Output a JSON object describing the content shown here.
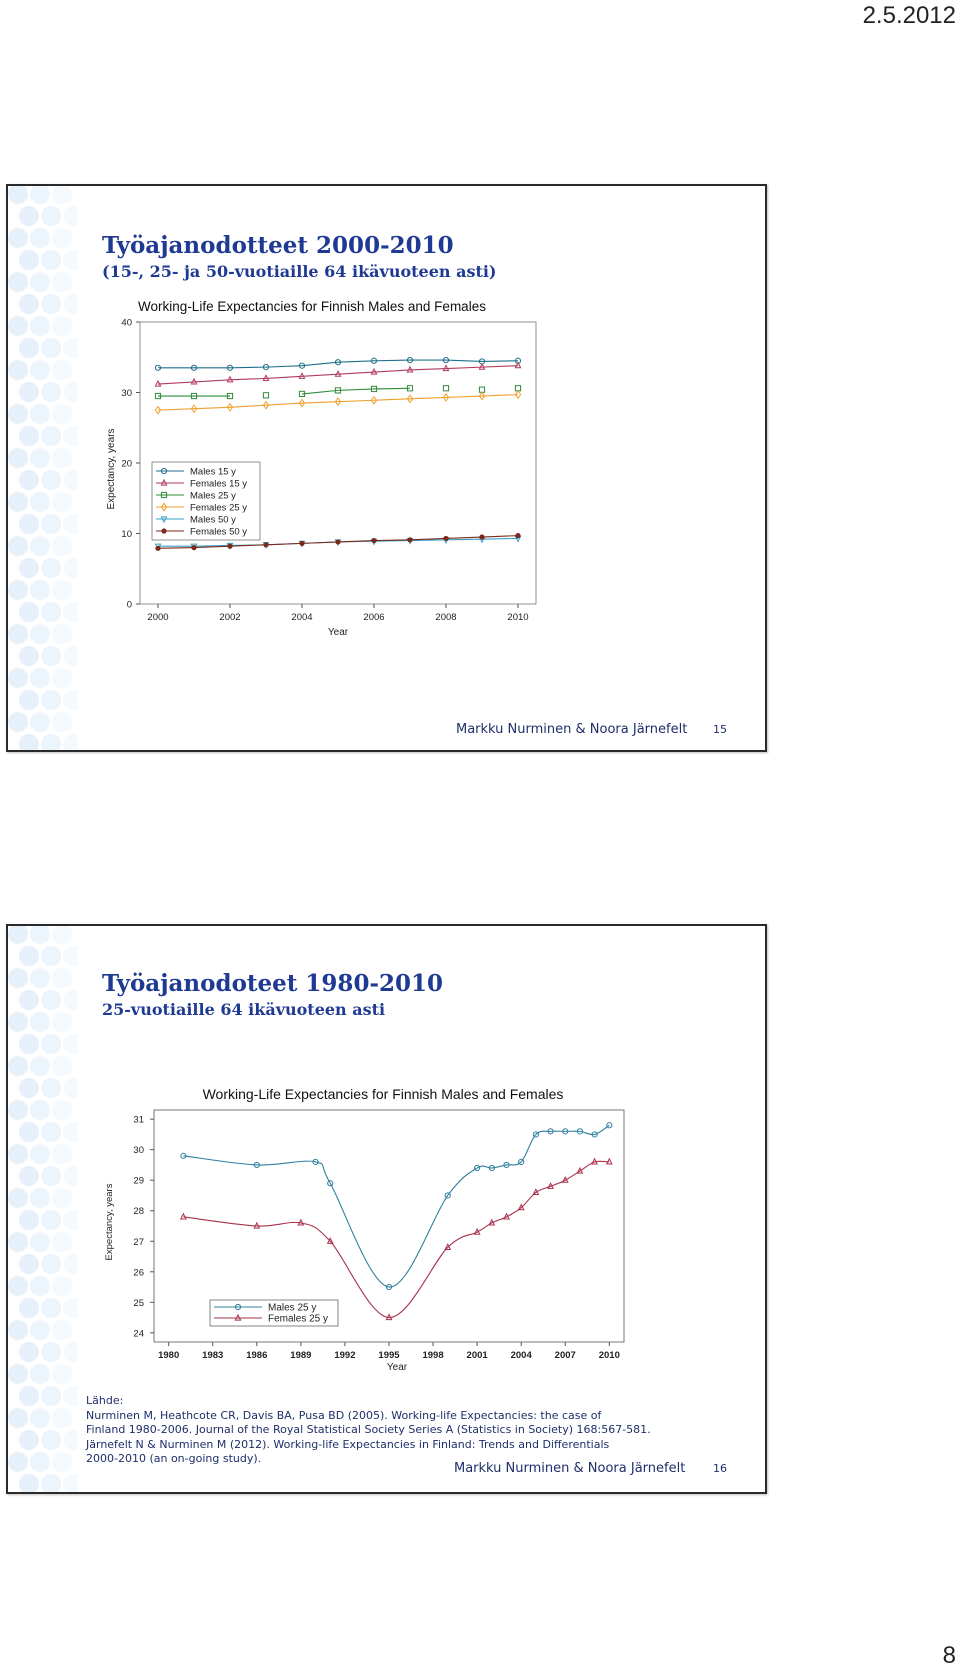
{
  "page": {
    "date": "2.5.2012",
    "number": "8"
  },
  "slides": [
    {
      "title": "Työajanodotteet 2000-2010",
      "subtitle": "(15-, 25- ja 50-vuotiaille 64 ikävuoteen asti)",
      "author": "Markku Nurminen & Noora Järnefelt",
      "slide_number": "15"
    },
    {
      "title": "Työajanodoteet 1980-2010",
      "subtitle": "25-vuotiaille 64 ikävuoteen asti",
      "author": "Markku Nurminen & Noora Järnefelt",
      "slide_number": "16",
      "sources": [
        "Lähde:",
        "Nurminen M, Heathcote CR, Davis BA, Pusa BD (2005). Working-life Expectancies: the case of",
        "Finland 1980-2006. Journal of the Royal Statistical Society Series A (Statistics in Society) 168:567-581.",
        "Järnefelt N & Nurminen M (2012). Working-life Expectancies in Finland: Trends and Differentials",
        "2000-2010 (an on-going study)."
      ]
    }
  ],
  "chart_data": [
    {
      "type": "line",
      "title": "Working-Life Expectancies for Finnish Males and Females",
      "xlabel": "Year",
      "ylabel": "Expectancy, years",
      "xlim": [
        1999.5,
        2010.5
      ],
      "ylim": [
        0,
        40
      ],
      "xticks": [
        2000,
        2002,
        2004,
        2006,
        2008,
        2010
      ],
      "yticks": [
        0,
        10,
        20,
        30,
        40
      ],
      "legend_position": "left-middle",
      "x": [
        2000,
        2001,
        2002,
        2003,
        2004,
        2005,
        2006,
        2007,
        2008,
        2009,
        2010
      ],
      "series": [
        {
          "name": "Males 15 y",
          "marker": "circle",
          "color": "#1f6f8b",
          "values": [
            33.5,
            33.5,
            33.5,
            33.6,
            33.8,
            34.3,
            34.5,
            34.6,
            34.6,
            34.4,
            34.5
          ]
        },
        {
          "name": "Females 15 y",
          "marker": "triangle",
          "color": "#b03a5b",
          "values": [
            31.2,
            31.5,
            31.8,
            32.0,
            32.3,
            32.6,
            32.9,
            33.2,
            33.4,
            33.6,
            33.8
          ]
        },
        {
          "name": "Males 25 y",
          "marker": "square",
          "color": "#2e8b3a",
          "values": [
            29.5,
            29.5,
            29.5,
            29.6,
            29.8,
            30.3,
            30.5,
            30.6,
            30.6,
            30.4,
            30.6
          ]
        },
        {
          "name": "Females 25 y",
          "marker": "diamond",
          "color": "#f0a030",
          "values": [
            27.5,
            27.7,
            27.9,
            28.2,
            28.5,
            28.7,
            28.9,
            29.1,
            29.3,
            29.5,
            29.7
          ]
        },
        {
          "name": "Males 50 y",
          "marker": "triangle-down",
          "color": "#3aa0c8",
          "values": [
            8.2,
            8.2,
            8.3,
            8.4,
            8.6,
            8.8,
            8.9,
            9.0,
            9.1,
            9.2,
            9.3
          ]
        },
        {
          "name": "Females 50 y",
          "marker": "dot",
          "color": "#7a2a1a",
          "values": [
            7.9,
            8.0,
            8.2,
            8.4,
            8.6,
            8.8,
            9.0,
            9.1,
            9.3,
            9.5,
            9.7
          ]
        }
      ]
    },
    {
      "type": "line",
      "title": "Working-Life Expectancies for Finnish Males and Females",
      "xlabel": "Year",
      "ylabel": "Expectancy, years",
      "xlim": [
        1979,
        2011
      ],
      "ylim": [
        23.7,
        31.3
      ],
      "xticks": [
        1980,
        1983,
        1986,
        1989,
        1992,
        1995,
        1998,
        2001,
        2004,
        2007,
        2010
      ],
      "yticks": [
        24,
        25,
        26,
        27,
        28,
        29,
        30,
        31
      ],
      "legend_position": "bottom-left",
      "series": [
        {
          "name": "Males 25 y",
          "marker": "circle",
          "color": "#2f7f9f",
          "x": [
            1981,
            1986,
            1990,
            1991,
            1995,
            1999,
            2001,
            2002,
            2003,
            2004,
            2005,
            2006,
            2007,
            2008,
            2009,
            2010
          ],
          "values": [
            29.8,
            29.5,
            29.6,
            28.9,
            25.5,
            28.5,
            29.4,
            29.4,
            29.5,
            29.6,
            30.5,
            30.6,
            30.6,
            30.6,
            30.5,
            30.8
          ]
        },
        {
          "name": "Females 25 y",
          "marker": "triangle",
          "color": "#a8304a",
          "x": [
            1981,
            1986,
            1989,
            1991,
            1995,
            1999,
            2001,
            2002,
            2003,
            2004,
            2005,
            2006,
            2007,
            2008,
            2009,
            2010
          ],
          "values": [
            27.8,
            27.5,
            27.6,
            27.0,
            24.5,
            26.8,
            27.3,
            27.6,
            27.8,
            28.1,
            28.6,
            28.8,
            29.0,
            29.3,
            29.6,
            29.6
          ]
        }
      ]
    }
  ]
}
